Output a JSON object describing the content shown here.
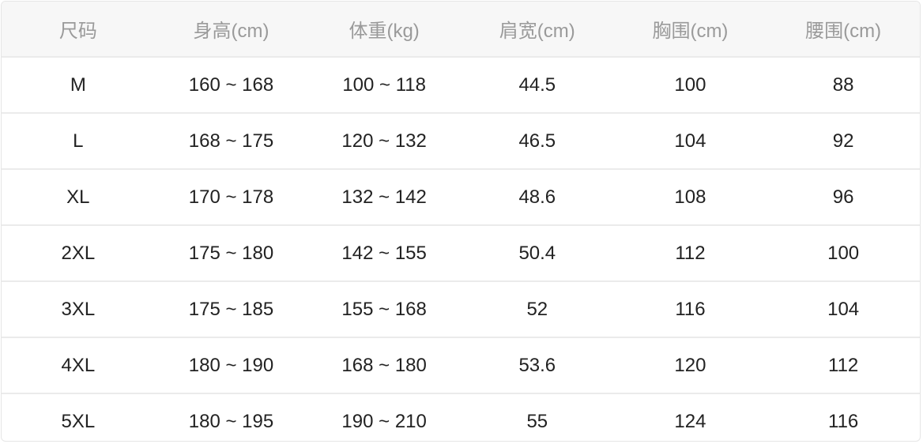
{
  "headers": [
    "尺码",
    "身高(cm)",
    "体重(kg)",
    "肩宽(cm)",
    "胸围(cm)",
    "腰围(cm)"
  ],
  "rows": [
    [
      "M",
      "160 ~ 168",
      "100 ~ 118",
      "44.5",
      "100",
      "88"
    ],
    [
      "L",
      "168 ~ 175",
      "120 ~ 132",
      "46.5",
      "104",
      "92"
    ],
    [
      "XL",
      "170 ~ 178",
      "132 ~ 142",
      "48.6",
      "108",
      "96"
    ],
    [
      "2XL",
      "175 ~ 180",
      "142 ~ 155",
      "50.4",
      "112",
      "100"
    ],
    [
      "3XL",
      "175 ~ 185",
      "155 ~ 168",
      "52",
      "116",
      "104"
    ],
    [
      "4XL",
      "180 ~ 190",
      "168 ~ 180",
      "53.6",
      "120",
      "112"
    ],
    [
      "5XL",
      "180 ~ 195",
      "190 ~ 210",
      "55",
      "124",
      "116"
    ]
  ],
  "colors": {
    "header_bg": "#f7f7f7",
    "header_text": "#9a9a9a",
    "cell_text": "#222222",
    "border": "#ebebeb"
  }
}
